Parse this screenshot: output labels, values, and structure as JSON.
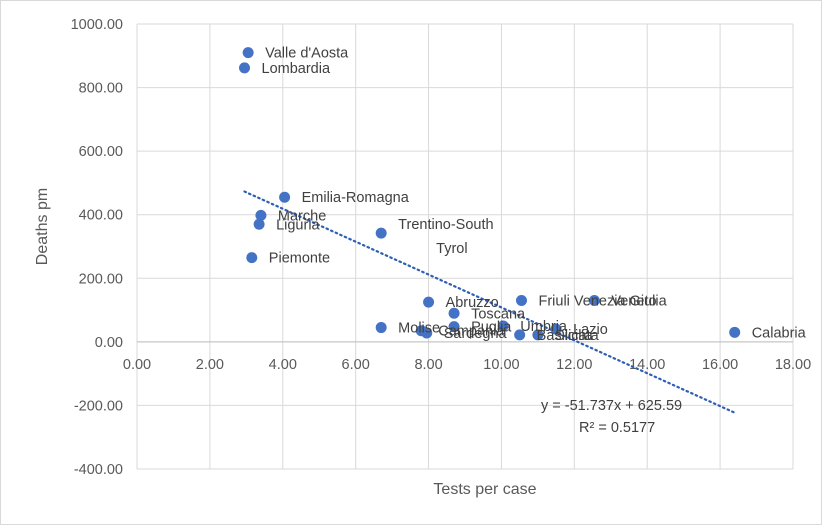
{
  "chart_data": {
    "type": "scatter",
    "xlabel": "Tests per case",
    "ylabel": "Deaths pm",
    "xlim": [
      0,
      18
    ],
    "ylim": [
      -400,
      1000
    ],
    "x_ticks": [
      "0.00",
      "2.00",
      "4.00",
      "6.00",
      "8.00",
      "10.00",
      "12.00",
      "14.00",
      "16.00",
      "18.00"
    ],
    "y_ticks": [
      "-400.00",
      "-200.00",
      "0.00",
      "200.00",
      "400.00",
      "600.00",
      "800.00",
      "1000.00"
    ],
    "grid": true,
    "marker_color": "#4472c4",
    "trendline_color": "#2e5fb5",
    "points": [
      {
        "name": "Valle d'Aosta",
        "x": 3.05,
        "y": 910
      },
      {
        "name": "Lombardia",
        "x": 2.95,
        "y": 862
      },
      {
        "name": "Emilia-Romagna",
        "x": 4.05,
        "y": 455
      },
      {
        "name": "Marche",
        "x": 3.4,
        "y": 398
      },
      {
        "name": "Liguria",
        "x": 3.35,
        "y": 370
      },
      {
        "name": "Trentino-South Tyrol",
        "x": 6.7,
        "y": 342
      },
      {
        "name": "Piemonte",
        "x": 3.15,
        "y": 265
      },
      {
        "name": "Abruzzo",
        "x": 8.0,
        "y": 125
      },
      {
        "name": "Friuli Venezia Giulia",
        "x": 10.55,
        "y": 130
      },
      {
        "name": "Veneto",
        "x": 12.55,
        "y": 130
      },
      {
        "name": "Toscana",
        "x": 8.7,
        "y": 90
      },
      {
        "name": "Molise",
        "x": 6.7,
        "y": 45
      },
      {
        "name": "Campania",
        "x": 7.8,
        "y": 35
      },
      {
        "name": "Sardegna",
        "x": 7.95,
        "y": 28
      },
      {
        "name": "Puglia",
        "x": 8.7,
        "y": 48
      },
      {
        "name": "Umbria",
        "x": 10.05,
        "y": 50
      },
      {
        "name": "Lazio",
        "x": 11.5,
        "y": 40
      },
      {
        "name": "Basilicata",
        "x": 10.5,
        "y": 22
      },
      {
        "name": "Sicilia",
        "x": 11.0,
        "y": 22
      },
      {
        "name": "Calabria",
        "x": 16.4,
        "y": 30
      }
    ],
    "trendline": {
      "slope": -51.737,
      "intercept": 625.59,
      "x_range": [
        2.95,
        16.4
      ],
      "equation": "y = -51.737x + 625.59",
      "r_squared": "R² = 0.5177"
    }
  }
}
